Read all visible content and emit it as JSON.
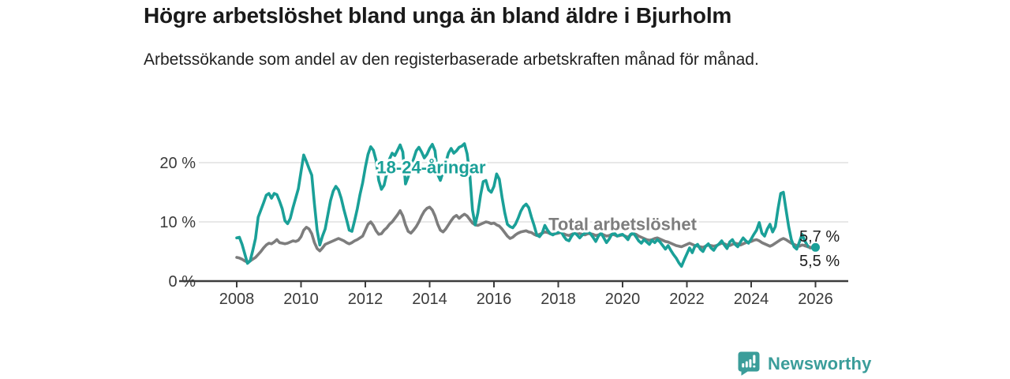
{
  "header": {
    "title": "Högre arbetslöshet bland unga än bland äldre i Bjurholm",
    "subtitle": "Arbetssökande som andel av den registerbaserade arbetskraften månad för månad."
  },
  "footer": {
    "brand": "Newsworthy",
    "logo_icon": "newsworthy-speech-bubble-bar-chart-icon"
  },
  "colors": {
    "youth_line": "#1AA098",
    "total_line": "#7D7D7D",
    "grid": "#E0E0E0",
    "axis": "#3C3C3C",
    "tick_text": "#3A3A3A",
    "end_label_text": "#1D1D1D",
    "brand_teal": "#3B9D9A"
  },
  "chart_data": {
    "type": "line",
    "title": "Högre arbetslöshet bland unga än bland äldre i Bjurholm",
    "subtitle": "Arbetssökande som andel av den registerbaserade arbetskraften månad för månad.",
    "x_unit": "months",
    "x_start_year": 2008,
    "x_end_year": 2026.0,
    "ylim": [
      0,
      25
    ],
    "grid": "horizontal",
    "legend_position": "inline-labels",
    "y_axis_ticks": {
      "values": [
        0,
        10,
        20
      ],
      "labels": [
        "0 %",
        "10 %",
        "20 %"
      ]
    },
    "x_axis_ticks": {
      "values": [
        2008,
        2010,
        2012,
        2014,
        2016,
        2018,
        2020,
        2022,
        2024,
        2026
      ],
      "labels": [
        "2008",
        "2010",
        "2012",
        "2014",
        "2016",
        "2018",
        "2020",
        "2022",
        "2024",
        "2026"
      ]
    },
    "series": [
      {
        "name": "Total arbetslöshet",
        "color": "#7D7D7D",
        "end_label": "5,5 %",
        "dashed_tail_points": 5,
        "values": [
          4.0,
          3.9,
          3.7,
          3.4,
          3.2,
          3.4,
          3.7,
          4.0,
          4.5,
          5.0,
          5.6,
          6.1,
          6.4,
          6.3,
          6.6,
          7.0,
          6.5,
          6.4,
          6.3,
          6.4,
          6.6,
          6.8,
          6.7,
          6.9,
          7.5,
          8.6,
          9.1,
          8.8,
          8.0,
          6.5,
          5.5,
          5.1,
          5.6,
          6.2,
          6.4,
          6.6,
          6.8,
          7.0,
          7.2,
          7.0,
          6.8,
          6.5,
          6.3,
          6.5,
          6.8,
          7.0,
          7.3,
          7.6,
          8.6,
          9.6,
          10.0,
          9.4,
          8.5,
          7.9,
          8.0,
          8.6,
          9.0,
          9.6,
          10.0,
          10.6,
          11.2,
          11.9,
          11.0,
          9.5,
          8.4,
          8.1,
          8.6,
          9.2,
          10.0,
          11.0,
          11.8,
          12.3,
          12.5,
          12.0,
          11.0,
          9.6,
          8.6,
          8.3,
          8.8,
          9.5,
          10.2,
          10.8,
          11.1,
          10.6,
          11.0,
          11.3,
          11.0,
          10.4,
          9.8,
          9.5,
          9.4,
          9.6,
          9.8,
          10.0,
          9.9,
          9.7,
          9.8,
          9.5,
          9.3,
          8.8,
          8.2,
          7.6,
          7.2,
          7.4,
          7.8,
          8.1,
          8.3,
          8.4,
          8.5,
          8.3,
          8.2,
          7.9,
          7.7,
          7.9,
          8.1,
          8.3,
          8.2,
          8.0,
          7.9,
          8.0,
          8.1,
          8.2,
          8.0,
          7.8,
          7.7,
          7.9,
          8.1,
          8.2,
          8.0,
          7.9,
          7.8,
          8.0,
          8.0,
          7.9,
          7.7,
          7.8,
          8.0,
          7.8,
          7.6,
          7.7,
          7.9,
          7.8,
          7.6,
          7.7,
          7.8,
          7.6,
          7.4,
          7.8,
          8.0,
          7.9,
          7.6,
          7.4,
          7.2,
          7.0,
          6.9,
          7.0,
          7.2,
          7.3,
          7.1,
          6.9,
          6.7,
          6.6,
          6.4,
          6.2,
          6.0,
          5.9,
          5.8,
          6.0,
          6.2,
          6.4,
          6.2,
          6.0,
          5.9,
          5.8,
          5.7,
          5.9,
          6.1,
          6.0,
          5.9,
          6.0,
          6.2,
          6.4,
          6.3,
          6.1,
          6.0,
          6.2,
          6.4,
          6.3,
          6.1,
          6.3,
          6.5,
          6.6,
          6.7,
          6.9,
          7.0,
          6.8,
          6.5,
          6.3,
          6.1,
          5.9,
          6.1,
          6.4,
          6.7,
          7.0,
          7.2,
          7.0,
          6.7,
          6.4,
          6.2,
          6.0,
          5.9,
          6.1,
          6.0,
          5.8,
          5.7,
          5.6,
          5.5
        ]
      },
      {
        "name": "18-24-åringar",
        "color": "#1AA098",
        "end_label": "5,7 %",
        "end_dot": true,
        "values": [
          7.3,
          7.4,
          6.2,
          4.6,
          3.0,
          3.4,
          5.2,
          7.2,
          10.8,
          12.0,
          13.2,
          14.5,
          14.8,
          14.0,
          14.8,
          14.6,
          13.5,
          12.2,
          10.2,
          9.7,
          10.6,
          12.4,
          14.0,
          15.6,
          18.5,
          21.3,
          20.2,
          19.0,
          17.9,
          13.0,
          8.6,
          6.1,
          7.6,
          8.8,
          11.2,
          13.6,
          15.2,
          16.0,
          15.4,
          14.0,
          12.1,
          10.4,
          8.6,
          8.4,
          10.2,
          12.2,
          14.6,
          16.6,
          19.2,
          21.4,
          22.7,
          22.1,
          20.4,
          17.0,
          15.5,
          16.2,
          18.2,
          20.6,
          21.6,
          21.2,
          22.1,
          23.0,
          21.8,
          16.4,
          17.6,
          19.2,
          20.6,
          22.0,
          22.6,
          21.8,
          20.8,
          21.4,
          22.4,
          23.1,
          22.0,
          18.0,
          17.0,
          18.4,
          20.0,
          21.6,
          22.4,
          21.6,
          22.0,
          22.6,
          22.8,
          23.2,
          21.5,
          18.0,
          12.0,
          9.5,
          11.5,
          14.5,
          16.8,
          17.0,
          15.4,
          15.0,
          16.0,
          18.1,
          17.2,
          14.2,
          11.6,
          9.6,
          9.2,
          9.0,
          9.6,
          10.6,
          11.8,
          12.6,
          13.0,
          12.4,
          10.8,
          9.4,
          7.8,
          7.5,
          8.1,
          9.4,
          8.6,
          8.0,
          7.8,
          8.1,
          8.2,
          8.4,
          7.6,
          7.0,
          6.8,
          7.6,
          8.2,
          7.8,
          7.3,
          7.8,
          8.1,
          8.3,
          8.0,
          7.4,
          6.7,
          7.6,
          8.1,
          7.3,
          6.5,
          7.1,
          7.9,
          8.1,
          7.6,
          7.8,
          7.9,
          7.5,
          7.0,
          7.9,
          8.1,
          7.5,
          6.8,
          6.4,
          7.0,
          6.6,
          6.2,
          6.9,
          6.5,
          7.0,
          6.6,
          6.0,
          5.4,
          6.0,
          5.2,
          4.5,
          3.9,
          3.1,
          2.5,
          3.6,
          4.6,
          5.6,
          4.8,
          5.9,
          6.2,
          5.4,
          5.0,
          5.9,
          6.3,
          5.6,
          5.2,
          5.9,
          6.3,
          6.8,
          6.1,
          5.5,
          6.6,
          7.0,
          6.2,
          5.8,
          6.6,
          7.3,
          6.8,
          6.4,
          7.1,
          7.9,
          8.6,
          9.9,
          8.1,
          7.6,
          8.8,
          9.6,
          8.3,
          9.2,
          12.2,
          14.8,
          15.0,
          12.1,
          9.2,
          7.0,
          5.8,
          5.4,
          6.6,
          7.9,
          6.8,
          6.0,
          5.6,
          5.6,
          5.7
        ]
      }
    ],
    "series_labels": [
      {
        "text": "18-24-åringar",
        "anchor_year": 2014.05,
        "anchor_value": 19.3,
        "color": "#1AA098"
      },
      {
        "text": "Total arbetslöshet",
        "anchor_year": 2020.0,
        "anchor_value": 9.7,
        "color": "#7D7D7D"
      }
    ]
  }
}
